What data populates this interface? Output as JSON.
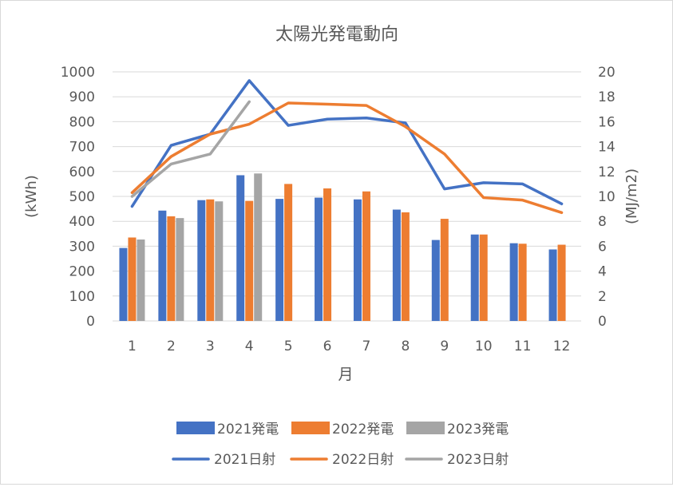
{
  "chart_data": {
    "type": "bar+line",
    "title": "太陽光発電動向",
    "xlabel": "月",
    "ylabel_left": "(kWh)",
    "ylabel_right": "(MJ/m2)",
    "categories": [
      "1",
      "2",
      "3",
      "4",
      "5",
      "6",
      "7",
      "8",
      "9",
      "10",
      "11",
      "12"
    ],
    "ylim_left": [
      0,
      1000
    ],
    "yticks_left": [
      "0",
      "100",
      "200",
      "300",
      "400",
      "500",
      "600",
      "700",
      "800",
      "900",
      "1000"
    ],
    "ylim_right": [
      0,
      20
    ],
    "yticks_right": [
      "0",
      "2",
      "4",
      "6",
      "8",
      "10",
      "12",
      "14",
      "16",
      "18",
      "20"
    ],
    "grid": true,
    "legend_position": "bottom",
    "bar_series": [
      {
        "name": "2021発電",
        "color": "#4472c4",
        "values": [
          293,
          443,
          485,
          585,
          490,
          495,
          488,
          447,
          325,
          347,
          312,
          287
        ]
      },
      {
        "name": "2022発電",
        "color": "#ed7d31",
        "values": [
          335,
          420,
          488,
          482,
          550,
          532,
          520,
          436,
          410,
          347,
          310,
          306
        ]
      },
      {
        "name": "2023発電",
        "color": "#a5a5a5",
        "values": [
          327,
          413,
          480,
          592,
          null,
          null,
          null,
          null,
          null,
          null,
          null,
          null
        ]
      }
    ],
    "line_series": [
      {
        "name": "2021日射",
        "color": "#4472c4",
        "values": [
          9.2,
          14.1,
          15.0,
          19.3,
          15.7,
          16.2,
          16.3,
          15.9,
          10.6,
          11.1,
          11.0,
          9.4
        ]
      },
      {
        "name": "2022日射",
        "color": "#ed7d31",
        "values": [
          10.3,
          13.2,
          15.0,
          15.8,
          17.5,
          17.4,
          17.3,
          15.6,
          13.4,
          9.9,
          9.7,
          8.7
        ]
      },
      {
        "name": "2023日射",
        "color": "#a5a5a5",
        "values": [
          10.0,
          12.6,
          13.4,
          17.6,
          null,
          null,
          null,
          null,
          null,
          null,
          null,
          null
        ]
      }
    ]
  }
}
